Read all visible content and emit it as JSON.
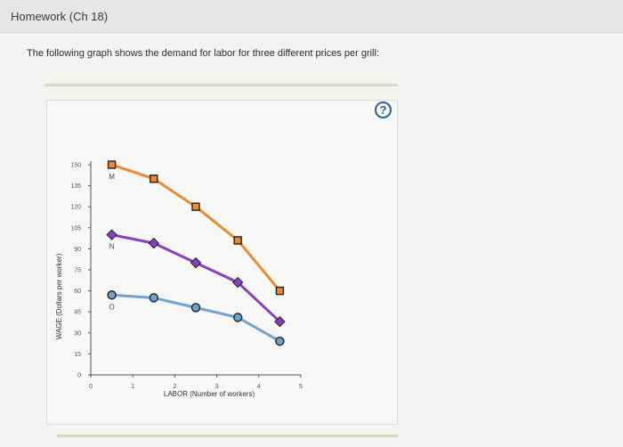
{
  "header": {
    "title": "Homework (Ch 18)"
  },
  "question": {
    "prompt": "The following graph shows the demand for labor for three different prices per grill:"
  },
  "help_button": {
    "label": "?"
  },
  "chart_data": {
    "type": "line",
    "xlabel": "LABOR (Number of workers)",
    "ylabel": "WAGE (Dollars per worker)",
    "xlim": [
      0,
      5
    ],
    "ylim": [
      0,
      150
    ],
    "x_ticks": [
      0,
      1,
      2,
      3,
      4,
      5
    ],
    "y_ticks": [
      0,
      15,
      30,
      45,
      60,
      75,
      90,
      105,
      120,
      135,
      150
    ],
    "grid": false,
    "series": [
      {
        "name": "M",
        "color": "#ee8a2e",
        "marker": "square",
        "x": [
          0.5,
          1.5,
          2.5,
          3.5,
          4.5
        ],
        "y": [
          150,
          140,
          120,
          96,
          60
        ]
      },
      {
        "name": "N",
        "color": "#8a3fbf",
        "marker": "diamond",
        "x": [
          0.5,
          1.5,
          2.5,
          3.5,
          4.5
        ],
        "y": [
          100,
          94,
          80,
          66,
          38
        ]
      },
      {
        "name": "O",
        "color": "#6ea3cf",
        "marker": "circle",
        "x": [
          0.5,
          1.5,
          2.5,
          3.5,
          4.5
        ],
        "y": [
          57,
          55,
          48,
          41,
          24
        ]
      }
    ]
  }
}
